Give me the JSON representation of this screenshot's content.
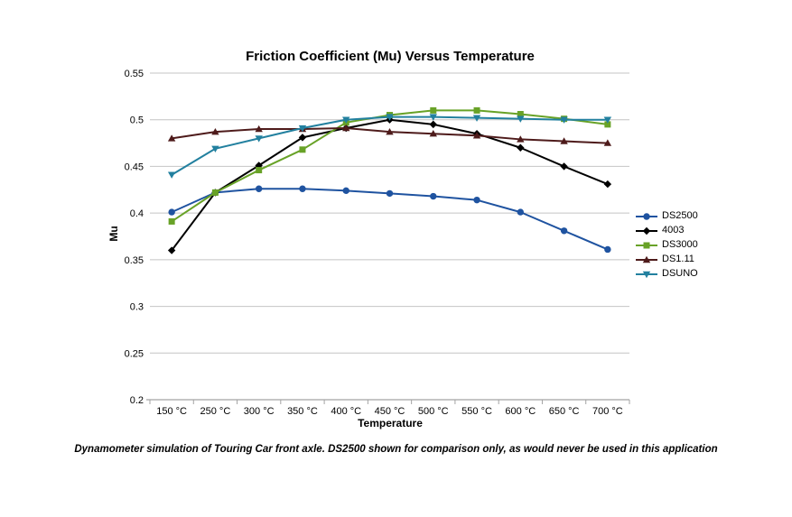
{
  "chart_data": {
    "type": "line",
    "title": "Friction Coefficient (Mu) Versus Temperature",
    "xlabel": "Temperature",
    "ylabel": "Mu",
    "ylim": [
      0.2,
      0.55
    ],
    "ytick_step": 0.05,
    "ytick_labels": [
      "0.55",
      "0.5",
      "0.45",
      "0.4",
      "0.35",
      "0.3",
      "0.25",
      "0.2"
    ],
    "grid": true,
    "legend_position": "right",
    "categories": [
      "150 °C",
      "250 °C",
      "300 °C",
      "350 °C",
      "400 °C",
      "450 °C",
      "500 °C",
      "550 °C",
      "600 °C",
      "650 °C",
      "700 °C"
    ],
    "series": [
      {
        "name": "DS2500",
        "color": "#1F53A0",
        "marker": "circle",
        "values": [
          0.401,
          0.422,
          0.426,
          0.426,
          0.424,
          0.421,
          0.418,
          0.414,
          0.401,
          0.381,
          0.361
        ]
      },
      {
        "name": "4003",
        "color": "#000000",
        "marker": "diamond",
        "values": [
          0.36,
          0.422,
          0.451,
          0.481,
          0.491,
          0.5,
          0.495,
          0.485,
          0.47,
          0.45,
          0.431
        ]
      },
      {
        "name": "DS3000",
        "color": "#68A227",
        "marker": "square",
        "values": [
          0.391,
          0.422,
          0.446,
          0.468,
          0.497,
          0.505,
          0.51,
          0.51,
          0.506,
          0.501,
          0.495
        ]
      },
      {
        "name": "DS1.11",
        "color": "#4E1B1B",
        "marker": "triangle-up",
        "values": [
          0.48,
          0.487,
          0.49,
          0.49,
          0.491,
          0.487,
          0.485,
          0.483,
          0.479,
          0.477,
          0.475
        ]
      },
      {
        "name": "DSUNO",
        "color": "#22809F",
        "marker": "triangle-down",
        "values": [
          0.441,
          0.469,
          0.48,
          0.491,
          0.5,
          0.503,
          0.503,
          0.502,
          0.501,
          0.5,
          0.5
        ]
      }
    ]
  },
  "caption": "Dynamometer simulation of Touring Car front axle. DS2500 shown for comparison only, as would never be used in this application",
  "colors": {
    "gridline": "#C4C4C4",
    "axis": "#A3A3A3",
    "text": "#000000",
    "background": "#FFFFFF"
  }
}
